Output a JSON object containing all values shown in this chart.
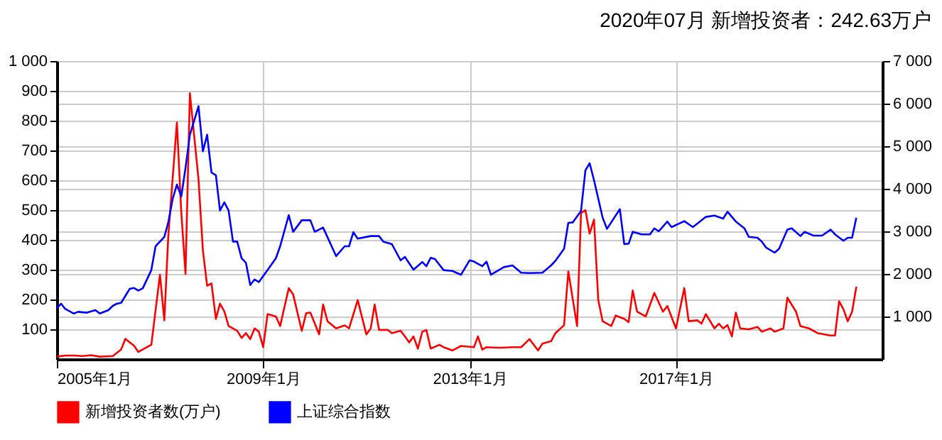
{
  "chart_data": {
    "type": "line",
    "title": "2020年07月   新增投资者：242.63万户",
    "xlim": [
      "2005-01",
      "2021-01"
    ],
    "xticks": [
      {
        "value": "2005-01",
        "label": "2005年1月"
      },
      {
        "value": "2009-01",
        "label": "2009年1月"
      },
      {
        "value": "2013-01",
        "label": "2013年1月"
      },
      {
        "value": "2017-01",
        "label": "2017年1月"
      }
    ],
    "ylim": [
      0,
      1000
    ],
    "yticks": [
      100,
      200,
      300,
      400,
      500,
      600,
      700,
      800,
      900,
      {
        "value": 1000,
        "label": "1 000"
      }
    ],
    "y2lim": [
      0,
      7000
    ],
    "y2ticks": [
      {
        "value": 1000,
        "label": "1 000"
      },
      {
        "value": 2000,
        "label": "2 000"
      },
      {
        "value": 3000,
        "label": "3 000"
      },
      {
        "value": 4000,
        "label": "4 000"
      },
      {
        "value": 5000,
        "label": "5 000"
      },
      {
        "value": 6000,
        "label": "6 000"
      },
      {
        "value": 7000,
        "label": "7 000"
      }
    ],
    "grid": true,
    "legend": "bottom left",
    "marker": "none",
    "line_style": "solid",
    "series": [
      {
        "name": "新增投资者数(万户)",
        "color": "#ff0000",
        "x": [
          "2005-01",
          "2005-03",
          "2005-05",
          "2005-07",
          "2005-09",
          "2005-11",
          "2006-02",
          "2006-04",
          "2006-05",
          "2006-07",
          "2006-08",
          "2006-10",
          "2006-11",
          "2007-01",
          "2007-02",
          "2007-03",
          "2007-05",
          "2007-06",
          "2007-07",
          "2007-08",
          "2007-09",
          "2007-10",
          "2007-11",
          "2007-12",
          "2008-01",
          "2008-02",
          "2008-03",
          "2008-04",
          "2008-05",
          "2008-07",
          "2008-08",
          "2008-09",
          "2008-10",
          "2008-11",
          "2008-12",
          "2009-01",
          "2009-02",
          "2009-04",
          "2009-05",
          "2009-07",
          "2009-08",
          "2009-10",
          "2009-11",
          "2009-12",
          "2010-02",
          "2010-03",
          "2010-04",
          "2010-06",
          "2010-08",
          "2010-09",
          "2010-11",
          "2011-01",
          "2011-02",
          "2011-03",
          "2011-04",
          "2011-06",
          "2011-07",
          "2011-09",
          "2011-10",
          "2011-11",
          "2011-12",
          "2012-01",
          "2012-02",
          "2012-03",
          "2012-04",
          "2012-06",
          "2012-07",
          "2012-09",
          "2012-11",
          "2013-02",
          "2013-03",
          "2013-04",
          "2013-05",
          "2013-08",
          "2013-11",
          "2014-01",
          "2014-03",
          "2014-05",
          "2014-06",
          "2014-08",
          "2014-09",
          "2014-11",
          "2014-12",
          "2015-02",
          "2015-03",
          "2015-04",
          "2015-05",
          "2015-06",
          "2015-07",
          "2015-08",
          "2015-10",
          "2015-11",
          "2016-01",
          "2016-02",
          "2016-03",
          "2016-04",
          "2016-06",
          "2016-08",
          "2016-10",
          "2016-11",
          "2017-01",
          "2017-03",
          "2017-04",
          "2017-06",
          "2017-07",
          "2017-08",
          "2017-10",
          "2017-11",
          "2017-12",
          "2018-01",
          "2018-02",
          "2018-03",
          "2018-04",
          "2018-06",
          "2018-08",
          "2018-09",
          "2018-11",
          "2018-12",
          "2019-02",
          "2019-03",
          "2019-05",
          "2019-06",
          "2019-08",
          "2019-10",
          "2020-01",
          "2020-02",
          "2020-03",
          "2020-04",
          "2020-05",
          "2020-06",
          "2020-07"
        ],
        "values": [
          8,
          12,
          12,
          10,
          13,
          8,
          10,
          32,
          68,
          45,
          24,
          40,
          48,
          283,
          130,
          413,
          794,
          492,
          286,
          892,
          746,
          603,
          365,
          246,
          254,
          135,
          186,
          160,
          111,
          95,
          71,
          87,
          67,
          103,
          92,
          40,
          151,
          143,
          111,
          238,
          217,
          95,
          154,
          156,
          83,
          183,
          127,
          103,
          113,
          103,
          198,
          83,
          103,
          183,
          98,
          98,
          87,
          95,
          76,
          56,
          76,
          35,
          92,
          98,
          35,
          48,
          40,
          29,
          44,
          40,
          76,
          32,
          40,
          38,
          40,
          40,
          67,
          29,
          52,
          60,
          87,
          114,
          294,
          111,
          490,
          500,
          421,
          468,
          198,
          127,
          111,
          146,
          135,
          124,
          230,
          159,
          143,
          222,
          159,
          178,
          103,
          238,
          127,
          130,
          119,
          151,
          103,
          119,
          103,
          114,
          76,
          156,
          103,
          100,
          108,
          92,
          103,
          92,
          103,
          206,
          159,
          111,
          103,
          87,
          79,
          79,
          194,
          167,
          127,
          159,
          243
        ]
      },
      {
        "name": "上证综合指数",
        "color": "#0000ff",
        "axis": "y2",
        "x": [
          "2005-01",
          "2005-02",
          "2005-03",
          "2005-05",
          "2005-06",
          "2005-08",
          "2005-10",
          "2005-11",
          "2006-01",
          "2006-02",
          "2006-03",
          "2006-04",
          "2006-06",
          "2006-07",
          "2006-08",
          "2006-09",
          "2006-11",
          "2006-12",
          "2007-02",
          "2007-03",
          "2007-04",
          "2007-05",
          "2007-06",
          "2007-07",
          "2007-08",
          "2007-10",
          "2007-11",
          "2007-12",
          "2008-01",
          "2008-02",
          "2008-03",
          "2008-04",
          "2008-05",
          "2008-06",
          "2008-07",
          "2008-08",
          "2008-09",
          "2008-10",
          "2008-11",
          "2008-12",
          "2009-02",
          "2009-04",
          "2009-05",
          "2009-07",
          "2009-08",
          "2009-10",
          "2009-12",
          "2010-01",
          "2010-03",
          "2010-06",
          "2010-08",
          "2010-09",
          "2010-10",
          "2010-11",
          "2011-02",
          "2011-04",
          "2011-05",
          "2011-07",
          "2011-09",
          "2011-10",
          "2011-12",
          "2012-02",
          "2012-03",
          "2012-04",
          "2012-05",
          "2012-07",
          "2012-09",
          "2012-11",
          "2013-01",
          "2013-02",
          "2013-04",
          "2013-05",
          "2013-06",
          "2013-09",
          "2013-11",
          "2014-01",
          "2014-03",
          "2014-06",
          "2014-08",
          "2014-09",
          "2014-11",
          "2014-12",
          "2015-01",
          "2015-03",
          "2015-04",
          "2015-05",
          "2015-06",
          "2015-08",
          "2015-09",
          "2015-11",
          "2015-12",
          "2016-01",
          "2016-02",
          "2016-03",
          "2016-05",
          "2016-07",
          "2016-08",
          "2016-09",
          "2016-11",
          "2016-12",
          "2017-03",
          "2017-05",
          "2017-08",
          "2017-10",
          "2017-12",
          "2018-01",
          "2018-03",
          "2018-05",
          "2018-06",
          "2018-08",
          "2018-09",
          "2018-10",
          "2018-12",
          "2019-01",
          "2019-03",
          "2019-04",
          "2019-06",
          "2019-07",
          "2019-09",
          "2019-11",
          "2020-01",
          "2020-02",
          "2020-04",
          "2020-05",
          "2020-06",
          "2020-07"
        ],
        "values": [
          1200,
          1300,
          1180,
          1070,
          1110,
          1090,
          1150,
          1070,
          1150,
          1250,
          1300,
          1320,
          1650,
          1670,
          1610,
          1660,
          2090,
          2650,
          2870,
          3210,
          3760,
          4100,
          3820,
          4490,
          5270,
          5940,
          4880,
          5270,
          4380,
          4320,
          3490,
          3680,
          3490,
          2760,
          2760,
          2370,
          2260,
          1740,
          1870,
          1810,
          2090,
          2370,
          2650,
          3380,
          2990,
          3260,
          3260,
          2990,
          3090,
          2420,
          2650,
          2650,
          2980,
          2830,
          2890,
          2890,
          2760,
          2700,
          2320,
          2400,
          2100,
          2280,
          2180,
          2380,
          2350,
          2090,
          2070,
          1980,
          2320,
          2290,
          2180,
          2290,
          1980,
          2160,
          2200,
          2030,
          2020,
          2030,
          2200,
          2310,
          2590,
          3200,
          3210,
          3480,
          4430,
          4600,
          4200,
          3320,
          3060,
          3370,
          3520,
          2700,
          2710,
          2990,
          2930,
          2930,
          3070,
          3000,
          3230,
          3100,
          3240,
          3100,
          3340,
          3370,
          3300,
          3460,
          3230,
          3070,
          2870,
          2850,
          2760,
          2620,
          2500,
          2590,
          3040,
          3070,
          2890,
          2990,
          2900,
          2900,
          3040,
          2930,
          2780,
          2850,
          2850,
          3320
        ]
      }
    ]
  }
}
